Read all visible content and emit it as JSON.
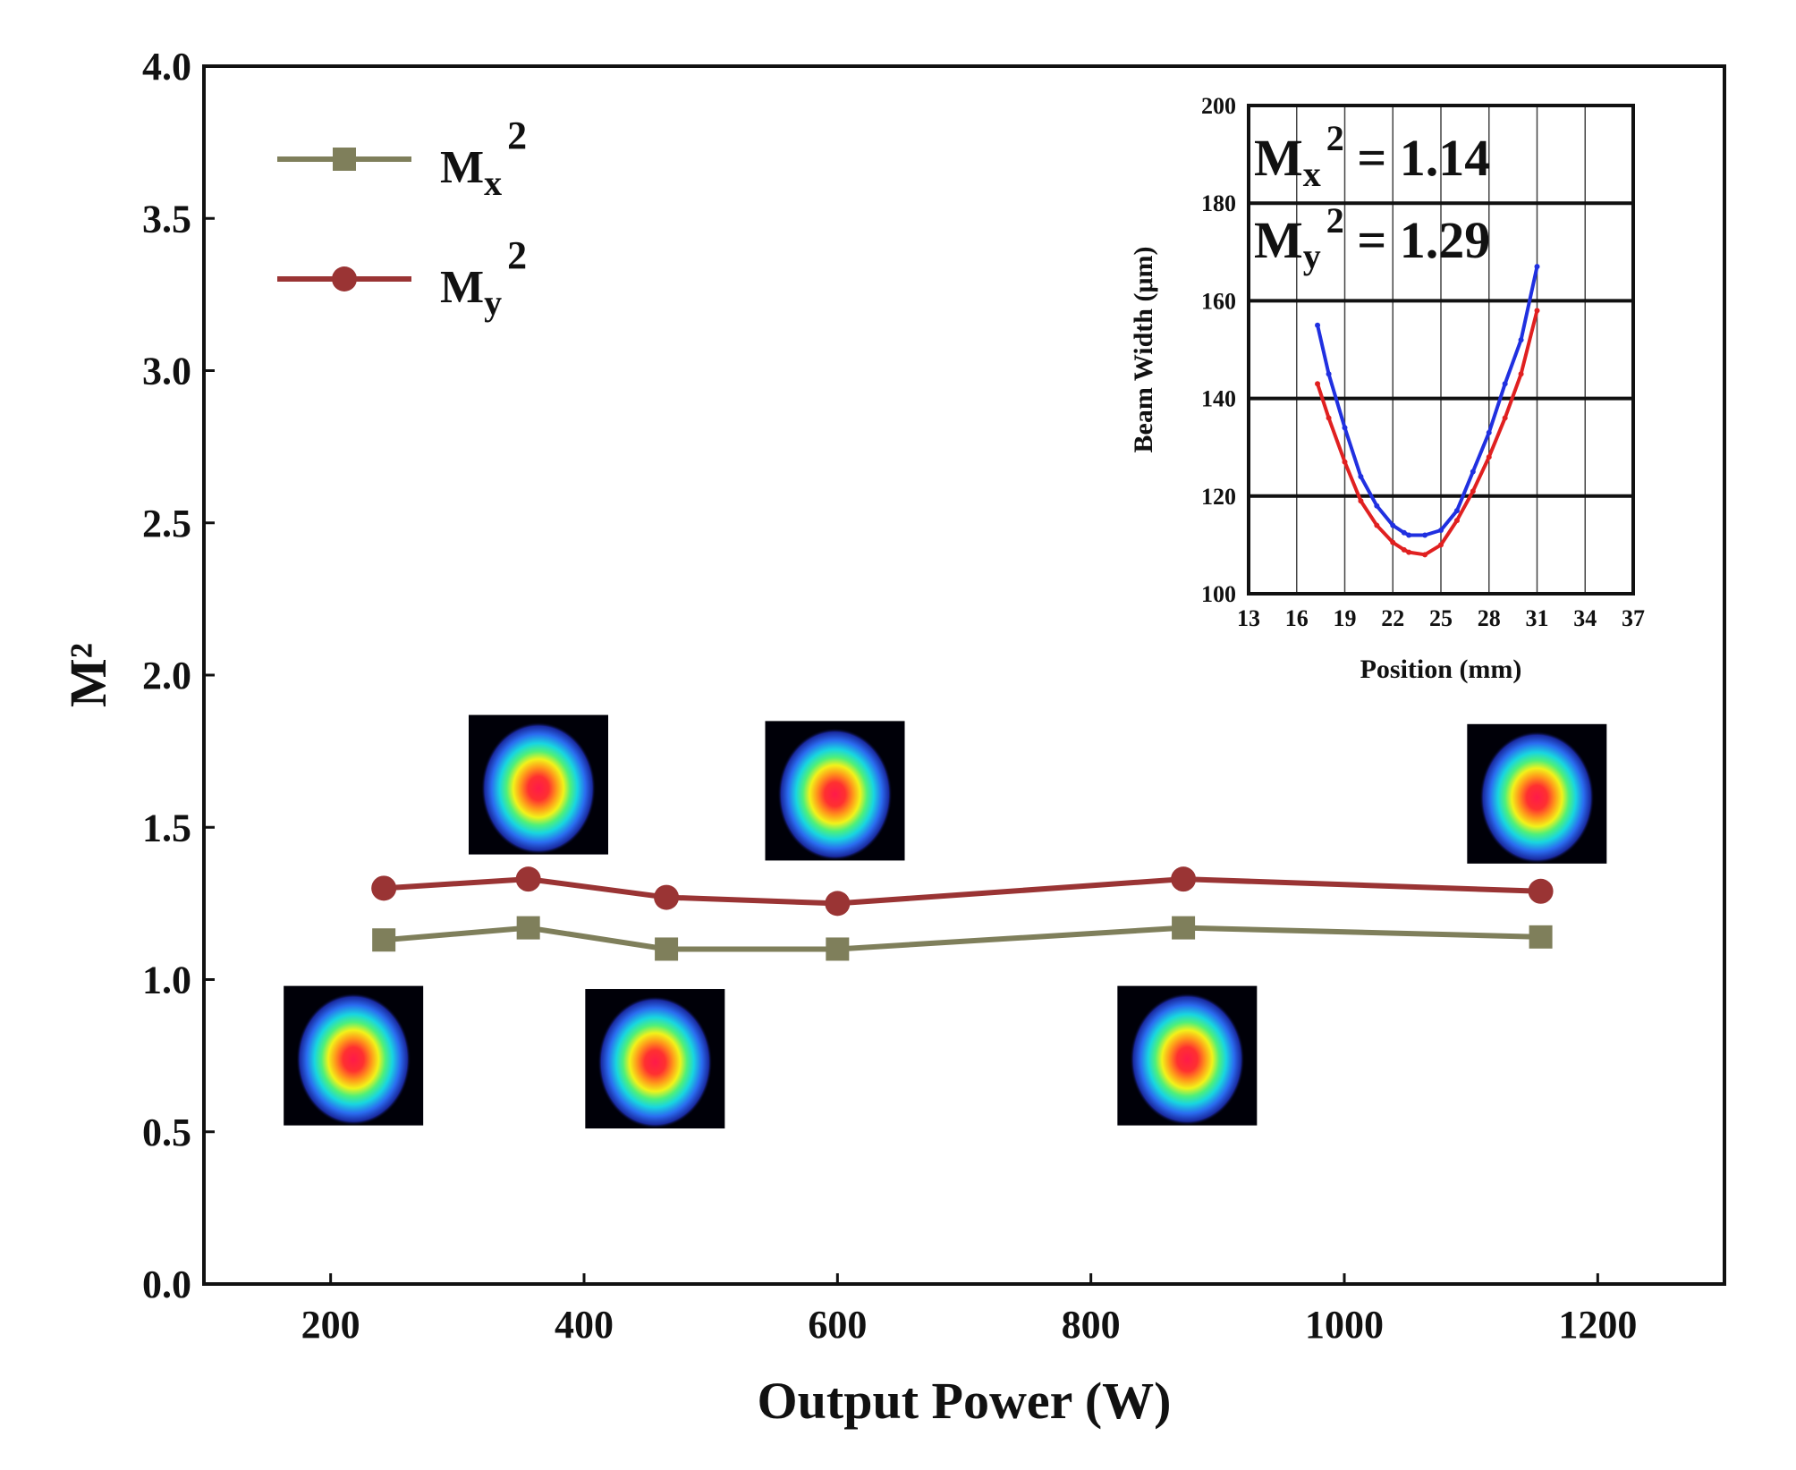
{
  "chart_data": [
    {
      "type": "line",
      "xlabel": "Output Power (W)",
      "ylabel": "M²",
      "xlim": [
        100,
        1300
      ],
      "ylim": [
        0.0,
        4.0
      ],
      "x_ticks": [
        "200",
        "400",
        "600",
        "800",
        "1000",
        "1200"
      ],
      "y_ticks": [
        "0.0",
        "0.5",
        "1.0",
        "1.5",
        "2.0",
        "2.5",
        "3.0",
        "3.5",
        "4.0"
      ],
      "legend_position": "top-left",
      "series": [
        {
          "name": "Mx²",
          "color": "#7f7f5b",
          "marker": "square",
          "x": [
            242,
            356,
            465,
            600,
            873,
            1155
          ],
          "y": [
            1.13,
            1.17,
            1.1,
            1.1,
            1.17,
            1.14
          ]
        },
        {
          "name": "My²",
          "color": "#9a3434",
          "marker": "circle",
          "x": [
            242,
            356,
            465,
            600,
            873,
            1155
          ],
          "y": [
            1.3,
            1.33,
            1.27,
            1.25,
            1.33,
            1.29
          ]
        }
      ],
      "beam_profile_images": [
        {
          "x": 218,
          "y_center": 0.75
        },
        {
          "x": 364,
          "y_center": 1.64
        },
        {
          "x": 456,
          "y_center": 0.74
        },
        {
          "x": 598,
          "y_center": 1.62
        },
        {
          "x": 876,
          "y_center": 0.75
        },
        {
          "x": 1152,
          "y_center": 1.61
        }
      ]
    },
    {
      "type": "scatter",
      "xlabel": "Position (mm)",
      "ylabel": "Beam Width (μm)",
      "xlim": [
        13,
        37
      ],
      "ylim": [
        100,
        200
      ],
      "x_ticks": [
        "13",
        "16",
        "19",
        "22",
        "25",
        "28",
        "31",
        "34",
        "37"
      ],
      "y_ticks": [
        "100",
        "120",
        "140",
        "160",
        "180",
        "200"
      ],
      "grid": true,
      "annotations": [
        {
          "base": "M",
          "sub": "x",
          "sup": "2",
          "value": " = 1.14"
        },
        {
          "base": "M",
          "sub": "y",
          "sup": "2",
          "value": " = 1.29"
        }
      ],
      "series": [
        {
          "color": "#2030e0",
          "x": [
            17.3,
            18,
            19,
            20,
            21,
            22,
            22.7,
            23,
            24,
            25,
            26,
            27,
            28,
            29,
            30,
            31
          ],
          "y": [
            155,
            145,
            134,
            124,
            118,
            114,
            112.5,
            112,
            112,
            113,
            117,
            125,
            133,
            143,
            152,
            167
          ]
        },
        {
          "color": "#e02020",
          "x": [
            17.3,
            18,
            19,
            20,
            21,
            22,
            22.7,
            23,
            24,
            25,
            26,
            27,
            28,
            29,
            30,
            31
          ],
          "y": [
            143,
            136,
            127,
            119,
            114,
            110.5,
            109,
            108.5,
            108,
            110,
            115,
            121,
            128,
            136,
            145,
            158
          ]
        }
      ]
    }
  ]
}
